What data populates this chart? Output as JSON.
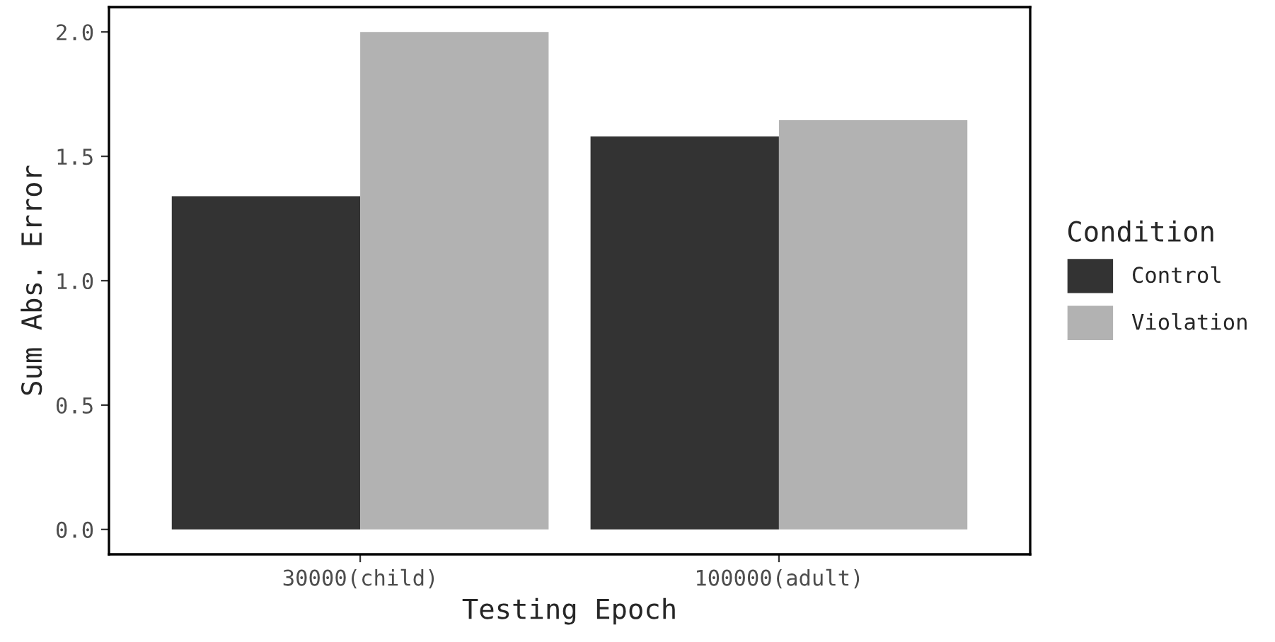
{
  "chart_data": {
    "type": "bar",
    "xlabel": "Testing Epoch",
    "ylabel": "Sum Abs. Error",
    "legend_title": "Condition",
    "categories": [
      "30000(child)",
      "100000(adult)"
    ],
    "series": [
      {
        "name": "Control",
        "color": "#333333",
        "values": [
          1.34,
          1.58
        ]
      },
      {
        "name": "Violation",
        "color": "#b2b2b2",
        "values": [
          2.0,
          1.645
        ]
      }
    ],
    "ylim": [
      -0.1,
      2.1
    ],
    "yticks": [
      {
        "value": 0,
        "label": "0.0"
      },
      {
        "value": 0.5,
        "label": "0.5"
      },
      {
        "value": 1,
        "label": "1.0"
      },
      {
        "value": 1.5,
        "label": "1.5"
      },
      {
        "value": 2,
        "label": "2.0"
      }
    ],
    "grid": false,
    "legend": "right"
  }
}
